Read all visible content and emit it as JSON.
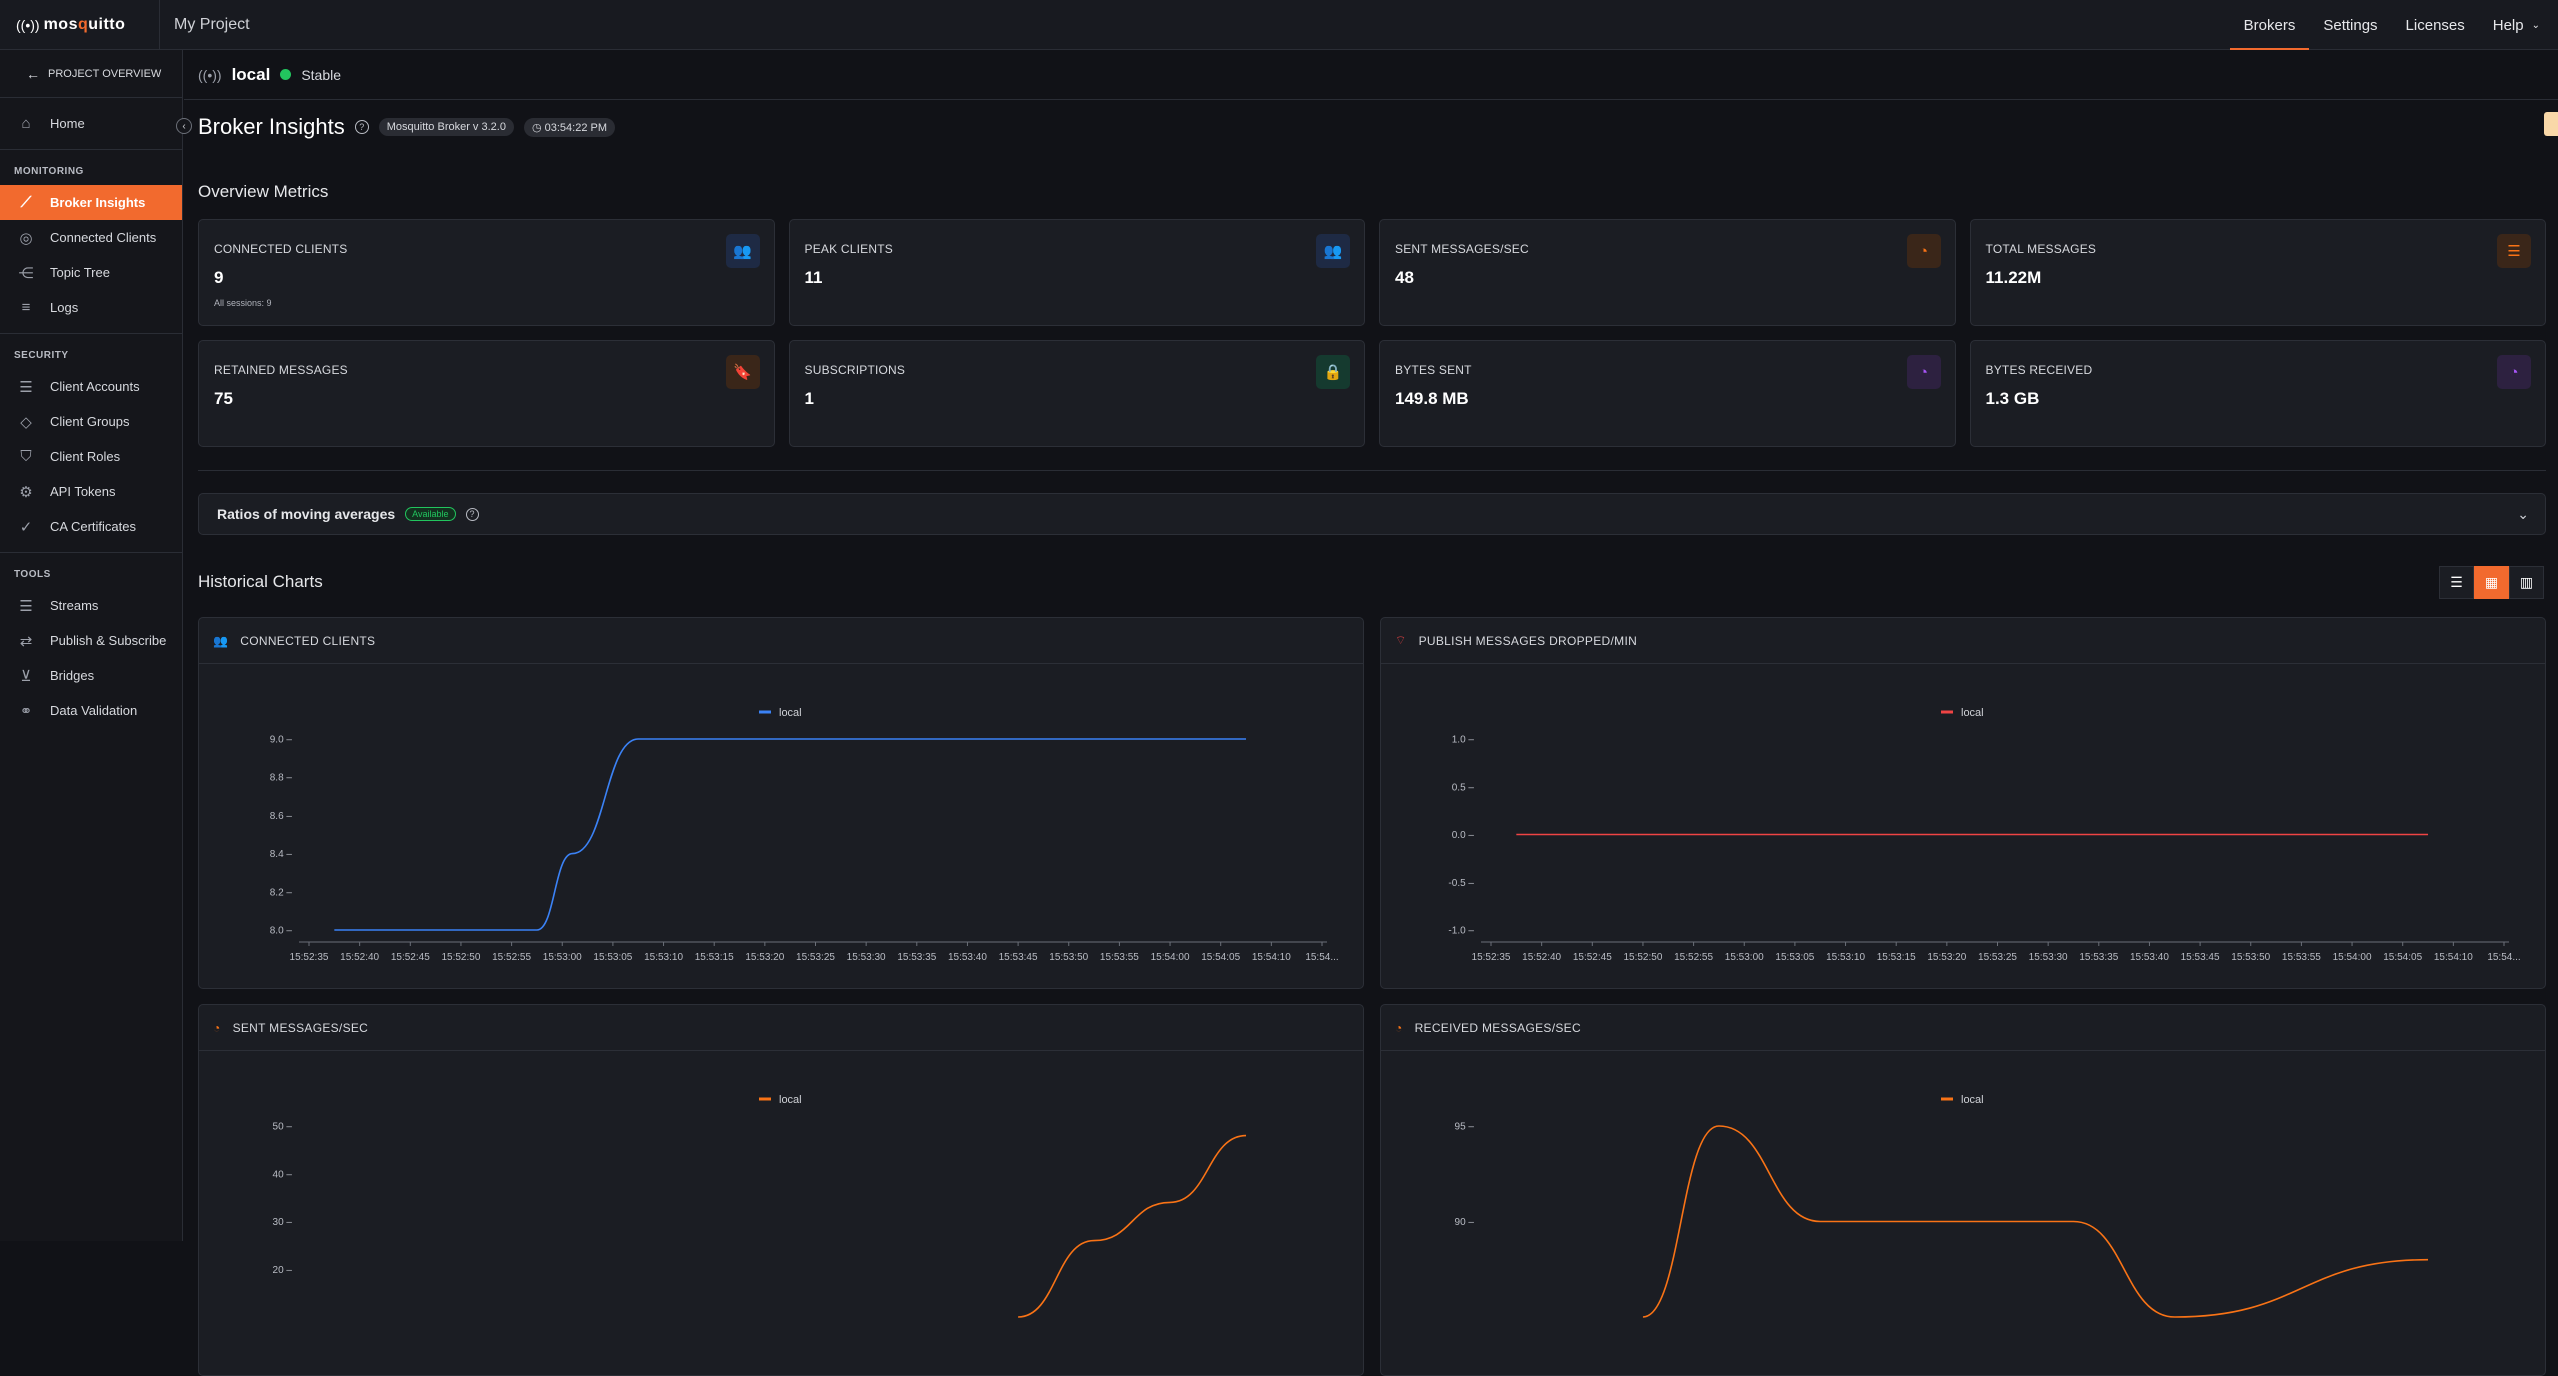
{
  "app": {
    "brand_a": "mos",
    "brand_b": "q",
    "brand_c": "uitto",
    "project": "My Project"
  },
  "topnav": [
    "Brokers",
    "Settings",
    "Licenses",
    "Help"
  ],
  "sidebar": {
    "back": "PROJECT OVERVIEW",
    "home": "Home",
    "sections": [
      {
        "title": "MONITORING",
        "items": [
          "Broker Insights",
          "Connected Clients",
          "Topic Tree",
          "Logs"
        ]
      },
      {
        "title": "SECURITY",
        "items": [
          "Client Accounts",
          "Client Groups",
          "Client Roles",
          "API Tokens",
          "CA Certificates"
        ]
      },
      {
        "title": "TOOLS",
        "items": [
          "Streams",
          "Publish & Subscribe",
          "Bridges",
          "Data Validation"
        ]
      }
    ]
  },
  "broker": {
    "name": "local",
    "status": "Stable",
    "status_color": "#22c55e"
  },
  "page": {
    "title": "Broker Insights",
    "version": "Mosquitto Broker v 3.2.0",
    "time": "03:54:22 PM"
  },
  "overview": {
    "title": "Overview Metrics",
    "cards": [
      {
        "label": "CONNECTED CLIENTS",
        "value": "9",
        "sub": "All sessions: 9",
        "icon": "users-icon",
        "color": "#3b82f6"
      },
      {
        "label": "PEAK CLIENTS",
        "value": "11",
        "sub": "",
        "icon": "users-icon",
        "color": "#3b82f6"
      },
      {
        "label": "SENT MESSAGES/SEC",
        "value": "48",
        "sub": "",
        "icon": "gauge-icon",
        "color": "#f97316"
      },
      {
        "label": "TOTAL MESSAGES",
        "value": "11.22M",
        "sub": "",
        "icon": "list-icon",
        "color": "#f97316"
      },
      {
        "label": "RETAINED MESSAGES",
        "value": "75",
        "sub": "",
        "icon": "bookmark-icon",
        "color": "#f97316"
      },
      {
        "label": "SUBSCRIPTIONS",
        "value": "1",
        "sub": "",
        "icon": "lock-icon",
        "color": "#10b981"
      },
      {
        "label": "BYTES SENT",
        "value": "149.8 MB",
        "sub": "",
        "icon": "gauge-icon",
        "color": "#a855f7"
      },
      {
        "label": "BYTES RECEIVED",
        "value": "1.3 GB",
        "sub": "",
        "icon": "gauge-icon",
        "color": "#a855f7"
      }
    ]
  },
  "ratios": {
    "title": "Ratios of moving averages",
    "badge": "Available"
  },
  "historical": {
    "title": "Historical Charts"
  },
  "chart_data": [
    {
      "type": "line",
      "title": "CONNECTED CLIENTS",
      "legend": "local",
      "color": "#3b82f6",
      "x": [
        "15:52:35",
        "15:52:40",
        "15:52:45",
        "15:52:50",
        "15:52:55",
        "15:53:00",
        "15:53:05",
        "15:53:10",
        "15:53:15",
        "15:53:20",
        "15:53:25",
        "15:53:30",
        "15:53:35",
        "15:53:40",
        "15:53:45",
        "15:53:50",
        "15:53:55",
        "15:54:00",
        "15:54:05",
        "15:54:10",
        "15:54..."
      ],
      "y_ticks": [
        "9.0",
        "8.8",
        "8.6",
        "8.4",
        "8.2",
        "8.0"
      ],
      "ylim": [
        8.0,
        9.0
      ],
      "points": [
        [
          0.5,
          8.0
        ],
        [
          4.5,
          8.0
        ],
        [
          5.2,
          8.4
        ],
        [
          6.5,
          9.0
        ],
        [
          18.5,
          9.0
        ]
      ]
    },
    {
      "type": "line",
      "title": "PUBLISH MESSAGES DROPPED/MIN",
      "legend": "local",
      "color": "#ef4444",
      "x": [
        "15:52:35",
        "15:52:40",
        "15:52:45",
        "15:52:50",
        "15:52:55",
        "15:53:00",
        "15:53:05",
        "15:53:10",
        "15:53:15",
        "15:53:20",
        "15:53:25",
        "15:53:30",
        "15:53:35",
        "15:53:40",
        "15:53:45",
        "15:53:50",
        "15:53:55",
        "15:54:00",
        "15:54:05",
        "15:54:10",
        "15:54..."
      ],
      "y_ticks": [
        "1.0",
        "0.5",
        "0.0",
        "-0.5",
        "-1.0"
      ],
      "ylim": [
        -1.0,
        1.0
      ],
      "points": [
        [
          0.5,
          0.0
        ],
        [
          18.5,
          0.0
        ]
      ]
    },
    {
      "type": "line",
      "title": "SENT MESSAGES/SEC",
      "legend": "local",
      "color": "#f97316",
      "y_ticks": [
        "50",
        "40",
        "30",
        "20"
      ],
      "ylim": [
        10,
        50
      ],
      "points": [
        [
          14.0,
          10
        ],
        [
          15.5,
          26
        ],
        [
          17.0,
          34
        ],
        [
          18.5,
          48
        ]
      ]
    },
    {
      "type": "line",
      "title": "RECEIVED MESSAGES/SEC",
      "legend": "local",
      "color": "#f97316",
      "y_ticks": [
        "95",
        "90"
      ],
      "ylim": [
        85,
        95
      ],
      "points": [
        [
          3.0,
          85
        ],
        [
          4.5,
          95
        ],
        [
          6.5,
          90
        ],
        [
          11.5,
          90
        ],
        [
          13.5,
          85
        ],
        [
          18.5,
          88
        ]
      ]
    }
  ]
}
